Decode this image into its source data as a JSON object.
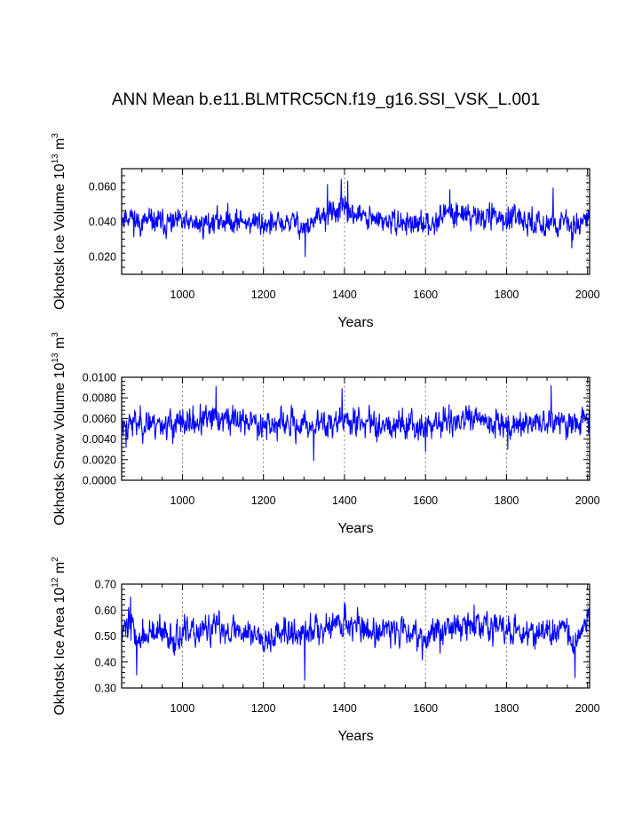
{
  "figure_title": "ANN Mean b.e11.BLMTRC5CN.f19_g16.SSI_VSK_L.001",
  "colors": {
    "series": "#0000ff",
    "axes": "#000000",
    "grid": "#666666"
  },
  "chart_data": [
    {
      "type": "line",
      "ylabel": {
        "text": "Okhotsk Ice Volume 10",
        "sup": "13",
        "unit": " m",
        "unit_sup": "3"
      },
      "xlabel": "Years",
      "xlim": [
        850,
        2005
      ],
      "ylim": [
        0.01,
        0.07
      ],
      "xticks": [
        1000,
        1200,
        1400,
        1600,
        1800,
        2000
      ],
      "xtick_labels": [
        "1000",
        "1200",
        "1400",
        "1600",
        "1800",
        "2000"
      ],
      "yticks": [
        0.02,
        0.04,
        0.06
      ],
      "ytick_labels": [
        "0.020",
        "0.040",
        "0.060"
      ],
      "grid_x": true,
      "series": [
        {
          "x_start": 850,
          "x_step": 1,
          "keypoints_x": [
            850,
            870,
            890,
            920,
            960,
            1000,
            1040,
            1080,
            1100,
            1150,
            1200,
            1230,
            1280,
            1300,
            1340,
            1380,
            1390,
            1420,
            1460,
            1500,
            1560,
            1600,
            1640,
            1680,
            1720,
            1780,
            1800,
            1840,
            1880,
            1920,
            1940,
            1960,
            1980,
            2005
          ],
          "keypoints_mean": [
            0.042,
            0.044,
            0.039,
            0.04,
            0.039,
            0.039,
            0.038,
            0.04,
            0.041,
            0.04,
            0.039,
            0.038,
            0.04,
            0.036,
            0.042,
            0.046,
            0.047,
            0.045,
            0.041,
            0.04,
            0.039,
            0.037,
            0.044,
            0.045,
            0.043,
            0.043,
            0.041,
            0.04,
            0.039,
            0.04,
            0.039,
            0.037,
            0.04,
            0.043
          ],
          "spread": 0.0045,
          "extremes": [
            [
              1303,
              0.02
            ],
            [
              1392,
              0.064
            ],
            [
              1358,
              0.061
            ],
            [
              1408,
              0.063
            ],
            [
              1660,
              0.058
            ],
            [
              1915,
              0.059
            ],
            [
              1961,
              0.025
            ]
          ],
          "seed": 11
        }
      ]
    },
    {
      "type": "line",
      "ylabel": {
        "text": "Okhotsk Snow Volume 10",
        "sup": "13",
        "unit": " m",
        "unit_sup": "3"
      },
      "xlabel": "Years",
      "xlim": [
        850,
        2005
      ],
      "ylim": [
        0.0,
        0.01
      ],
      "xticks": [
        1000,
        1200,
        1400,
        1600,
        1800,
        2000
      ],
      "xtick_labels": [
        "1000",
        "1200",
        "1400",
        "1600",
        "1800",
        "2000"
      ],
      "yticks": [
        0.0,
        0.002,
        0.004,
        0.006,
        0.008,
        0.01
      ],
      "ytick_labels": [
        "0.0000",
        "0.0020",
        "0.0040",
        "0.0060",
        "0.0080",
        "0.0100"
      ],
      "grid_x": true,
      "series": [
        {
          "x_start": 850,
          "x_step": 1,
          "keypoints_x": [
            850,
            900,
            950,
            1000,
            1050,
            1100,
            1150,
            1200,
            1250,
            1300,
            1350,
            1400,
            1450,
            1500,
            1550,
            1600,
            1650,
            1700,
            1750,
            1800,
            1850,
            1900,
            1950,
            2005
          ],
          "keypoints_mean": [
            0.0055,
            0.0056,
            0.0055,
            0.0054,
            0.0058,
            0.006,
            0.0058,
            0.0055,
            0.0054,
            0.0053,
            0.0055,
            0.0058,
            0.0056,
            0.0055,
            0.0055,
            0.0052,
            0.0057,
            0.0058,
            0.0057,
            0.0056,
            0.0055,
            0.0057,
            0.0055,
            0.0058
          ],
          "spread": 0.0009,
          "extremes": [
            [
              1083,
              0.0091
            ],
            [
              1394,
              0.0089
            ],
            [
              1910,
              0.0092
            ],
            [
              1324,
              0.0019
            ],
            [
              861,
              0.0032
            ],
            [
              1600,
              0.0028
            ],
            [
              1803,
              0.003
            ]
          ],
          "seed": 23
        }
      ]
    },
    {
      "type": "line",
      "ylabel": {
        "text": "Okhotsk Ice Area 10",
        "sup": "12",
        "unit": " m",
        "unit_sup": "2"
      },
      "xlabel": "Years",
      "xlim": [
        850,
        2005
      ],
      "ylim": [
        0.3,
        0.7
      ],
      "xticks": [
        1000,
        1200,
        1400,
        1600,
        1800,
        2000
      ],
      "xtick_labels": [
        "1000",
        "1200",
        "1400",
        "1600",
        "1800",
        "2000"
      ],
      "yticks": [
        0.3,
        0.4,
        0.5,
        0.6,
        0.7
      ],
      "ytick_labels": [
        "0.30",
        "0.40",
        "0.50",
        "0.60",
        "0.70"
      ],
      "grid_x": true,
      "series": [
        {
          "x_start": 850,
          "x_step": 1,
          "keypoints_x": [
            850,
            870,
            890,
            920,
            960,
            1000,
            1050,
            1100,
            1150,
            1200,
            1250,
            1300,
            1340,
            1380,
            1420,
            1460,
            1500,
            1560,
            1600,
            1640,
            1700,
            1760,
            1800,
            1850,
            1900,
            1940,
            1965,
            1985,
            2005
          ],
          "keypoints_mean": [
            0.53,
            0.56,
            0.48,
            0.51,
            0.5,
            0.5,
            0.52,
            0.53,
            0.52,
            0.5,
            0.51,
            0.5,
            0.54,
            0.55,
            0.55,
            0.52,
            0.52,
            0.53,
            0.49,
            0.53,
            0.54,
            0.54,
            0.52,
            0.52,
            0.51,
            0.52,
            0.46,
            0.53,
            0.56
          ],
          "spread": 0.038,
          "extremes": [
            [
              872,
              0.65
            ],
            [
              887,
              0.35
            ],
            [
              1302,
              0.33
            ],
            [
              1969,
              0.34
            ],
            [
              1400,
              0.63
            ],
            [
              1720,
              0.62
            ]
          ],
          "seed": 37
        }
      ]
    }
  ]
}
